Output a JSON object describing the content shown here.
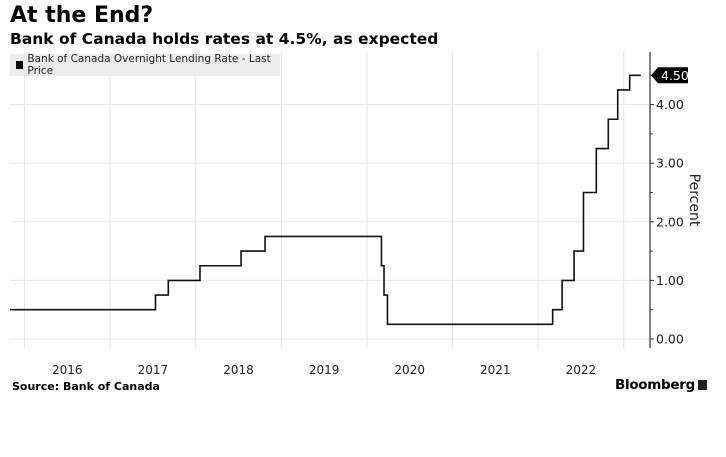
{
  "header": {
    "title": "At the End?",
    "subtitle": "Bank of Canada holds rates at 4.5%, as expected"
  },
  "footer": {
    "source": "Source: Bank of Canada",
    "brand": "Bloomberg"
  },
  "chart_data": {
    "type": "line",
    "step": true,
    "title": "At the End?",
    "subtitle": "Bank of Canada holds rates at 4.5%, as expected",
    "legend": [
      "Bank of Canada Overnight Lending Rate - Last Price"
    ],
    "legend_position": "top-left",
    "ylabel": "Percent",
    "ylim": [
      -0.1,
      4.75
    ],
    "xlim": [
      2015.83,
      2023.4
    ],
    "yticks": [
      "0.00",
      "1.00",
      "2.00",
      "3.00",
      "4.00"
    ],
    "ytick_values": [
      0,
      1,
      2,
      3,
      4
    ],
    "xticks": [
      "2016",
      "2017",
      "2018",
      "2019",
      "2020",
      "2021",
      "2022"
    ],
    "last_value_label": "4.50",
    "series": [
      {
        "name": "Bank of Canada Overnight Lending Rate - Last Price",
        "x": [
          2015.83,
          2017.53,
          2017.68,
          2018.05,
          2018.53,
          2018.81,
          2020.17,
          2020.2,
          2020.24,
          2022.17,
          2022.28,
          2022.42,
          2022.53,
          2022.68,
          2022.82,
          2022.93,
          2023.07,
          2023.2
        ],
        "y": [
          0.5,
          0.75,
          1.0,
          1.25,
          1.5,
          1.75,
          1.25,
          0.75,
          0.25,
          0.5,
          1.0,
          1.5,
          2.5,
          3.25,
          3.75,
          4.25,
          4.5,
          4.5
        ]
      }
    ]
  }
}
